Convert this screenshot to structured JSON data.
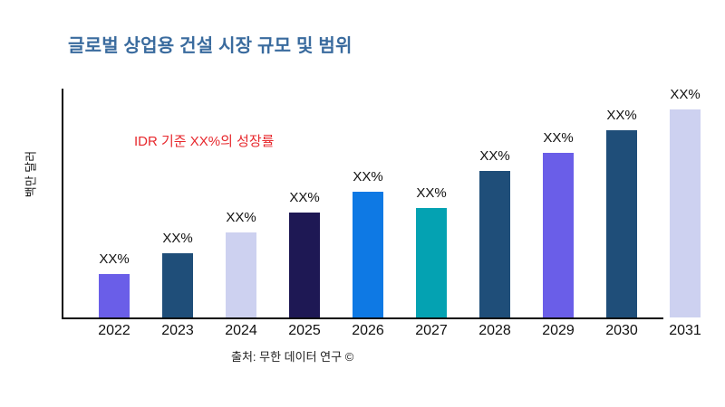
{
  "page": {
    "background": "#ffffff"
  },
  "chart_data": {
    "type": "bar",
    "title": "글로벌 상업용 건설 시장 규모 및 범위",
    "title_color": "#3a6b9e",
    "xlabel": "",
    "ylabel": "백만 달러",
    "annotation": {
      "text": "IDR 기준 XX%의 성장률",
      "color": "#e7282d"
    },
    "source": "출처: 무한 데이터 연구 ©",
    "categories": [
      "2022",
      "2023",
      "2024",
      "2025",
      "2026",
      "2027",
      "2028",
      "2029",
      "2030",
      "2031"
    ],
    "values": [
      19,
      28,
      37,
      46,
      55,
      48,
      64,
      72,
      82,
      91
    ],
    "value_labels": [
      "XX%",
      "XX%",
      "XX%",
      "XX%",
      "XX%",
      "XX%",
      "XX%",
      "XX%",
      "XX%",
      "XX%"
    ],
    "bar_colors": [
      "#6a5ee8",
      "#1f4e79",
      "#cdd1f0",
      "#1e1854",
      "#0e79e4",
      "#04a2b2",
      "#1f4e79",
      "#6a5ee8",
      "#1f4e79",
      "#cdd1f0"
    ],
    "ylim": [
      0,
      100
    ],
    "grid": false,
    "legend": false,
    "axis_color": "#0a0a0a"
  }
}
